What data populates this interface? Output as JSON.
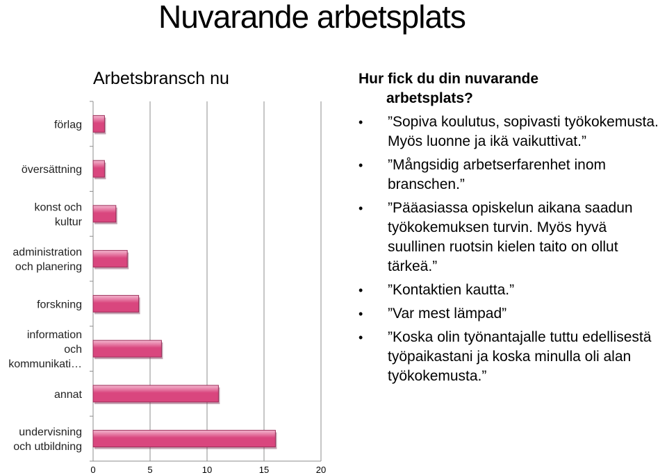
{
  "slide": {
    "title": "Nuvarande arbetsplats"
  },
  "chart_data": {
    "type": "bar",
    "orientation": "horizontal",
    "title": "Arbetsbransch nu",
    "categories": [
      "förlag",
      "översättning",
      "konst och kultur",
      "administration och planering",
      "forskning",
      "information och kommunikati…",
      "annat",
      "undervisning och utbildning"
    ],
    "category_lines": [
      [
        "förlag"
      ],
      [
        "översättning"
      ],
      [
        "konst och",
        "kultur"
      ],
      [
        "administration",
        "och planering"
      ],
      [
        "forskning"
      ],
      [
        "information",
        "och",
        "kommunikati…"
      ],
      [
        "annat"
      ],
      [
        "undervisning",
        "och utbildning"
      ]
    ],
    "values": [
      1,
      1,
      2,
      3,
      4,
      6,
      11,
      16
    ],
    "xlim": [
      0,
      20
    ],
    "xticks": [
      0,
      5,
      10,
      15,
      20
    ],
    "xlabel": "",
    "ylabel": "",
    "grid": true,
    "bar_color": "#d9467e",
    "bar_highlight": "#f4b8d0"
  },
  "text": {
    "question_line1": "Hur fick du din nuvarande",
    "question_line2": "arbetsplats?",
    "bullets": [
      "”Sopiva koulutus, sopivasti työkokemusta. Myös luonne ja ikä vaikuttivat.”",
      "”Mångsidig arbetserfarenhet inom branschen.”",
      "”Pääasiassa opiskelun aikana saadun työkokemuksen turvin. Myös hyvä suullinen ruotsin kielen taito on ollut tärkeä.”",
      "”Kontaktien kautta.”",
      "”Var mest lämpad”",
      "”Koska olin työnantajalle tuttu edellisestä työpaikastani ja koska minulla oli alan työkokemusta.”"
    ]
  }
}
